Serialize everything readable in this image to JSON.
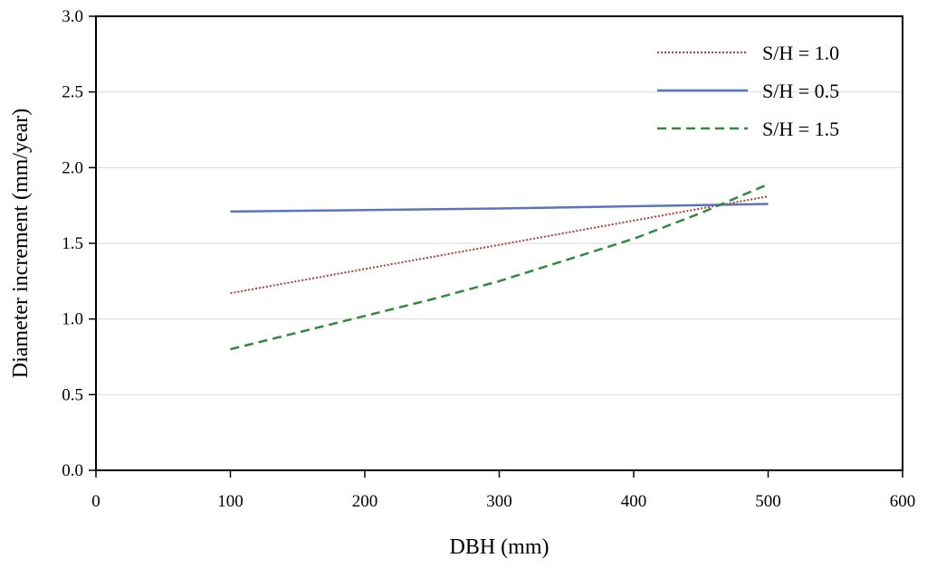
{
  "chart_data": {
    "type": "line",
    "title": "",
    "xlabel": "DBH (mm)",
    "ylabel": "Diameter increment (mm/year)",
    "xlim": [
      0,
      600
    ],
    "ylim": [
      0,
      3.0
    ],
    "xticks": [
      "0",
      "100",
      "200",
      "300",
      "400",
      "500",
      "600"
    ],
    "yticks": [
      "0.0",
      "0.5",
      "1.0",
      "1.5",
      "2.0",
      "2.5",
      "3.0"
    ],
    "grid": "horizontal",
    "legend_position": "top-right",
    "series": [
      {
        "name": "S/H = 1.0",
        "color": "#c0392b",
        "style": "dotted",
        "x": [
          100,
          150,
          200,
          250,
          300,
          350,
          400,
          450,
          500
        ],
        "y": [
          1.17,
          1.25,
          1.33,
          1.41,
          1.49,
          1.57,
          1.65,
          1.73,
          1.81
        ]
      },
      {
        "name": "S/H = 0.5",
        "color": "#5b74c0",
        "style": "solid",
        "x": [
          100,
          200,
          300,
          400,
          500
        ],
        "y": [
          1.71,
          1.72,
          1.73,
          1.745,
          1.76
        ]
      },
      {
        "name": "S/H = 1.5",
        "color": "#2e8b3a",
        "style": "dashed",
        "x": [
          100,
          150,
          200,
          250,
          300,
          350,
          400,
          450,
          500
        ],
        "y": [
          0.8,
          0.91,
          1.02,
          1.13,
          1.25,
          1.39,
          1.53,
          1.7,
          1.89
        ]
      }
    ]
  }
}
